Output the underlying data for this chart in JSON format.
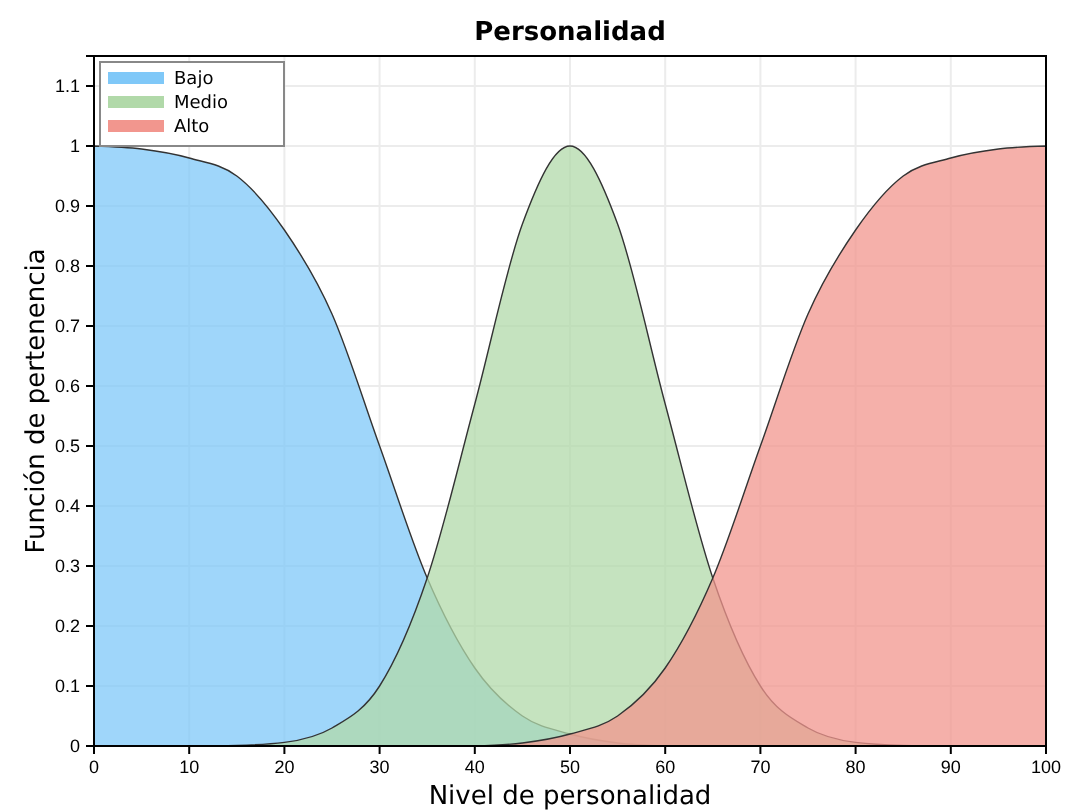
{
  "chart_data": {
    "type": "area",
    "title": "Personalidad",
    "xlabel": "Nivel de personalidad",
    "ylabel": "Función de pertenencia",
    "xlim": [
      0,
      100
    ],
    "xticks": [
      0,
      10,
      20,
      30,
      40,
      50,
      60,
      70,
      80,
      90,
      100
    ],
    "ylim": [
      0,
      1.15
    ],
    "yticks": [
      0,
      0.1,
      0.2,
      0.3,
      0.4,
      0.5,
      0.6,
      0.7,
      0.8,
      0.9,
      1,
      1.1
    ],
    "grid": true,
    "legend": "top left",
    "series": [
      {
        "name": "Bajo",
        "color": "#7fc8f8",
        "x": [
          0,
          5,
          10,
          15,
          20,
          25,
          30,
          35,
          40,
          45,
          50,
          55,
          60
        ],
        "values": [
          1,
          0.995,
          0.98,
          0.95,
          0.86,
          0.72,
          0.5,
          0.28,
          0.13,
          0.05,
          0.02,
          0.005,
          0
        ]
      },
      {
        "name": "Medio",
        "color": "#b1d9a9",
        "x": [
          10,
          15,
          20,
          25,
          30,
          35,
          40,
          45,
          50,
          55,
          60,
          65,
          70,
          75,
          80,
          85,
          90
        ],
        "values": [
          0,
          0.001,
          0.006,
          0.03,
          0.1,
          0.28,
          0.57,
          0.87,
          1,
          0.87,
          0.57,
          0.28,
          0.1,
          0.03,
          0.006,
          0.001,
          0
        ]
      },
      {
        "name": "Alto",
        "color": "#f2968e",
        "x": [
          40,
          45,
          50,
          55,
          60,
          65,
          70,
          75,
          80,
          85,
          90,
          95,
          100
        ],
        "values": [
          0,
          0.005,
          0.02,
          0.05,
          0.13,
          0.28,
          0.5,
          0.72,
          0.86,
          0.95,
          0.98,
          0.995,
          1
        ]
      }
    ]
  }
}
